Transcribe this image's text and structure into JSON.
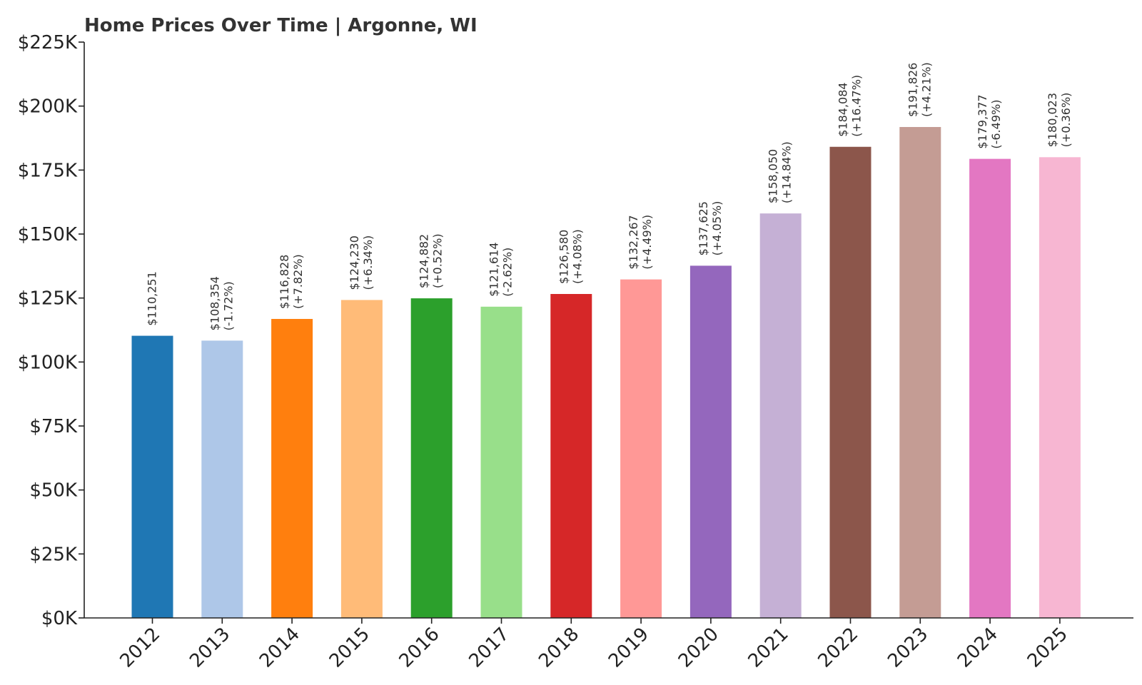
{
  "chart_data": {
    "type": "bar",
    "title": "Home Prices Over Time | Argonne, WI",
    "xlabel": "",
    "ylabel": "",
    "ylim": [
      0,
      225000
    ],
    "yticks": [
      {
        "value": 0,
        "label": "$0K"
      },
      {
        "value": 25000,
        "label": "$25K"
      },
      {
        "value": 50000,
        "label": "$50K"
      },
      {
        "value": 75000,
        "label": "$75K"
      },
      {
        "value": 100000,
        "label": "$100K"
      },
      {
        "value": 125000,
        "label": "$125K"
      },
      {
        "value": 150000,
        "label": "$150K"
      },
      {
        "value": 175000,
        "label": "$175K"
      },
      {
        "value": 200000,
        "label": "$200K"
      },
      {
        "value": 225000,
        "label": "$225K"
      }
    ],
    "grid": false,
    "legend": "none",
    "categories": [
      "2012",
      "2013",
      "2014",
      "2015",
      "2016",
      "2017",
      "2018",
      "2019",
      "2020",
      "2021",
      "2022",
      "2023",
      "2024",
      "2025"
    ],
    "values": [
      110251,
      108354,
      116828,
      124230,
      124882,
      121614,
      126580,
      132267,
      137625,
      158050,
      184084,
      191826,
      179377,
      180023
    ],
    "value_labels": [
      "$110,251",
      "$108,354",
      "$116,828",
      "$124,230",
      "$124,882",
      "$121,614",
      "$126,580",
      "$132,267",
      "$137,625",
      "$158,050",
      "$184,084",
      "$191,826",
      "$179,377",
      "$180,023"
    ],
    "change_labels": [
      "",
      "(-1.72%)",
      "(+7.82%)",
      "(+6.34%)",
      "(+0.52%)",
      "(-2.62%)",
      "(+4.08%)",
      "(+4.49%)",
      "(+4.05%)",
      "(+14.84%)",
      "(+16.47%)",
      "(+4.21%)",
      "(-6.49%)",
      "(+0.36%)"
    ],
    "colors": [
      "#1f77b4",
      "#aec7e8",
      "#ff7f0e",
      "#ffbb78",
      "#2ca02c",
      "#98df8a",
      "#d62728",
      "#ff9896",
      "#9467bd",
      "#c5b0d5",
      "#8c564b",
      "#c49c94",
      "#e377c2",
      "#f7b6d2"
    ]
  }
}
